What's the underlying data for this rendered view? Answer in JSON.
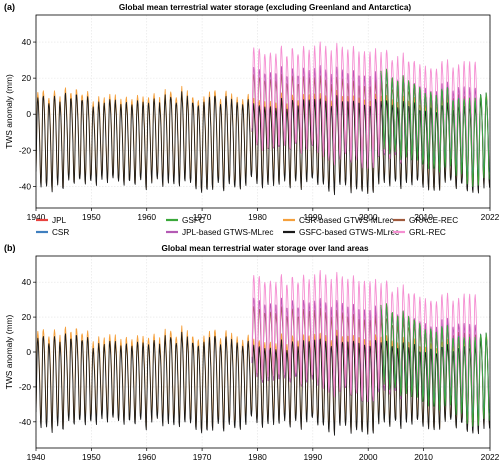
{
  "chart_data": [
    {
      "type": "line",
      "panel_label": "(a)",
      "title": "Global mean terrestrial water storage (excluding Greenland and Antarctica)",
      "xlabel": "",
      "ylabel": "TWS anomaly (mm)",
      "xlim": [
        1940,
        2022
      ],
      "ylim": [
        -52,
        55
      ],
      "xticks": [
        1940,
        1950,
        1960,
        1970,
        1980,
        1990,
        2000,
        2010,
        2022
      ],
      "yticks": [
        -40,
        -20,
        0,
        20,
        40
      ],
      "grid": true,
      "series": [
        {
          "name": "JPL",
          "color": "#e8433f",
          "start": 2002.3,
          "end": 2022.0,
          "amp_lo": 38,
          "amp_hi": 42,
          "offset_start": 2,
          "offset_end": -12
        },
        {
          "name": "CSR",
          "color": "#3f7fbf",
          "start": 2002.3,
          "end": 2022.0,
          "amp_lo": 38,
          "amp_hi": 42,
          "offset_start": 2,
          "offset_end": -12
        },
        {
          "name": "GSFC",
          "color": "#3aa83a",
          "start": 2002.3,
          "end": 2022.0,
          "amp_lo": 40,
          "amp_hi": 46,
          "offset_start": 2,
          "offset_end": -14
        },
        {
          "name": "JPL-based GTWS-MLrec",
          "color": "#b45ab4",
          "start": 1979.0,
          "end": 2020.0,
          "amp_lo": 40,
          "amp_hi": 48,
          "offset_start": 6,
          "offset_end": -6
        },
        {
          "name": "CSR-based GTWS-MLrec",
          "color": "#f5a03c",
          "start": 1940.0,
          "end": 2022.0,
          "amp_lo": 44,
          "amp_hi": 50,
          "offset_start": -11,
          "offset_end": -14
        },
        {
          "name": "GSFC-based GTWS-MLrec",
          "color": "#1a1a1a",
          "start": 1940.0,
          "end": 2022.0,
          "amp_lo": 42,
          "amp_hi": 48,
          "offset_start": -13,
          "offset_end": -16
        },
        {
          "name": "GRACE-REC",
          "color": "#a05a3c",
          "start": 1979.0,
          "end": 2020.0,
          "amp_lo": 36,
          "amp_hi": 40,
          "offset_start": 4,
          "offset_end": -8
        },
        {
          "name": "GRL-REC",
          "color": "#f58fd2",
          "start": 1979.0,
          "end": 2020.0,
          "amp_lo": 50,
          "amp_hi": 62,
          "offset_start": 12,
          "offset_end": 2
        }
      ]
    },
    {
      "type": "line",
      "panel_label": "(b)",
      "title": "Global mean terrestrial water storage over land areas",
      "xlabel": "",
      "ylabel": "TWS anomaly (mm)",
      "xlim": [
        1940,
        2022
      ],
      "ylim": [
        -55,
        55
      ],
      "xticks": [
        1940,
        1950,
        1960,
        1970,
        1980,
        1990,
        2000,
        2010,
        2022
      ],
      "yticks": [
        -40,
        -20,
        0,
        20,
        40
      ],
      "grid": true,
      "series": [
        {
          "name": "JPL",
          "color": "#e8433f",
          "start": 2002.3,
          "end": 2022.0,
          "amp_lo": 40,
          "amp_hi": 44,
          "offset_start": 4,
          "offset_end": -14
        },
        {
          "name": "CSR",
          "color": "#3f7fbf",
          "start": 2002.3,
          "end": 2022.0,
          "amp_lo": 40,
          "amp_hi": 44,
          "offset_start": 4,
          "offset_end": -14
        },
        {
          "name": "GSFC",
          "color": "#3aa83a",
          "start": 2002.3,
          "end": 2022.0,
          "amp_lo": 42,
          "amp_hi": 48,
          "offset_start": 4,
          "offset_end": -16
        },
        {
          "name": "JPL-based GTWS-MLrec",
          "color": "#b45ab4",
          "start": 1979.0,
          "end": 2020.0,
          "amp_lo": 42,
          "amp_hi": 50,
          "offset_start": 10,
          "offset_end": -6
        },
        {
          "name": "CSR-based GTWS-MLrec",
          "color": "#f5a03c",
          "start": 1940.0,
          "end": 2022.0,
          "amp_lo": 44,
          "amp_hi": 52,
          "offset_start": -12,
          "offset_end": -16
        },
        {
          "name": "GSFC-based GTWS-MLrec",
          "color": "#1a1a1a",
          "start": 1940.0,
          "end": 2022.0,
          "amp_lo": 42,
          "amp_hi": 50,
          "offset_start": -15,
          "offset_end": -18
        },
        {
          "name": "GRACE-REC",
          "color": "#a05a3c",
          "start": 1979.0,
          "end": 2020.0,
          "amp_lo": 36,
          "amp_hi": 42,
          "offset_start": 8,
          "offset_end": -8
        },
        {
          "name": "GRL-REC",
          "color": "#f58fd2",
          "start": 1979.0,
          "end": 2020.0,
          "amp_lo": 52,
          "amp_hi": 66,
          "offset_start": 18,
          "offset_end": 4
        }
      ]
    }
  ],
  "legend": {
    "columns": [
      [
        "JPL",
        "CSR"
      ],
      [
        "GSFC",
        "JPL-based GTWS-MLrec"
      ],
      [
        "CSR-based GTWS-MLrec",
        "GSFC-based GTWS-MLrec"
      ],
      [
        "GRACE-REC",
        "GRL-REC"
      ]
    ]
  }
}
